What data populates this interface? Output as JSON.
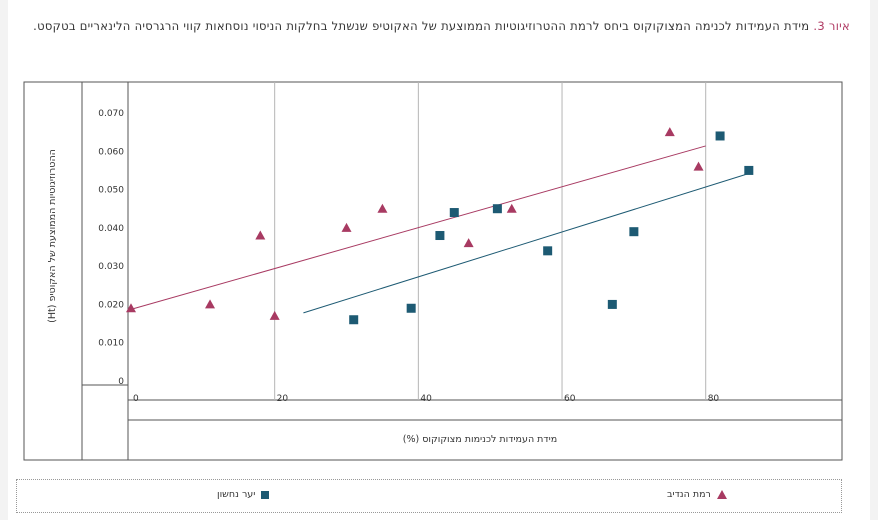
{
  "caption": {
    "figure_label": "איור 3.",
    "text": "מידת העמידות לכנימה המצוקוקוס ביחס לרמת ההטרוזיגוטיות הממוצעת של האקוטיפ שנשתל בחלקות הניסוי נוסחאות קווי הרגרסיה הלינאריים בטקסט."
  },
  "chart_data": {
    "type": "scatter",
    "xlabel": "מידת העמידות לכנימות מצוקוקוס (%)",
    "ylabel": "ההטרוזיגוטיות הממוצעת של האקוטיפ (Ht)",
    "xlim": [
      0,
      87
    ],
    "ylim": [
      0,
      0.07
    ],
    "x_ticks": [
      "0",
      "20",
      "40",
      "60",
      "80"
    ],
    "y_ticks": [
      "0",
      "0.010",
      "0.020",
      "0.030",
      "0.040",
      "0.050",
      "0.060",
      "0.070"
    ],
    "grid": "vertical",
    "legend_position": "bottom",
    "series": [
      {
        "name": "רמת הנדיב",
        "marker": "triangle",
        "color": "#a83a62",
        "points": [
          [
            0,
            0.019
          ],
          [
            11,
            0.02
          ],
          [
            18,
            0.038
          ],
          [
            20,
            0.017
          ],
          [
            30,
            0.04
          ],
          [
            35,
            0.045
          ],
          [
            47,
            0.036
          ],
          [
            53,
            0.045
          ],
          [
            75,
            0.065
          ],
          [
            79,
            0.056
          ]
        ],
        "trend": [
          [
            0,
            0.0187
          ],
          [
            80,
            0.0614
          ]
        ]
      },
      {
        "name": "יער נחשון",
        "marker": "square",
        "color": "#1d5a73",
        "points": [
          [
            31,
            0.016
          ],
          [
            39,
            0.019
          ],
          [
            43,
            0.038
          ],
          [
            45,
            0.044
          ],
          [
            51,
            0.045
          ],
          [
            58,
            0.034
          ],
          [
            67,
            0.02
          ],
          [
            70,
            0.039
          ],
          [
            82,
            0.064
          ],
          [
            86,
            0.055
          ]
        ],
        "trend": [
          [
            24,
            0.0178
          ],
          [
            86,
            0.0542
          ]
        ]
      }
    ]
  }
}
